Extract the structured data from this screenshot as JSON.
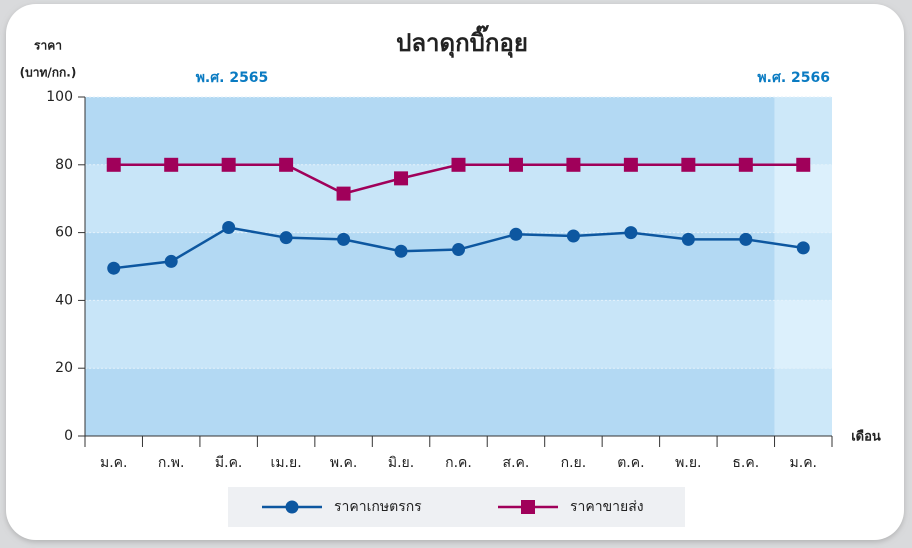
{
  "chart_data": {
    "type": "line",
    "title": "ปลาดุกบิ๊กอุย",
    "y_label": [
      "ราคา",
      "(บาท/กก.)"
    ],
    "x_label": "เดือน",
    "annotations": [
      "พ.ศ. 2565",
      "พ.ศ. 2566"
    ],
    "categories": [
      "ม.ค.",
      "ก.พ.",
      "มี.ค.",
      "เม.ย.",
      "พ.ค.",
      "มิ.ย.",
      "ก.ค.",
      "ส.ค.",
      "ก.ย.",
      "ต.ค.",
      "พ.ย.",
      "ธ.ค.",
      "ม.ค."
    ],
    "series": [
      {
        "name": "ราคาเกษตรกร",
        "color": "#0d57a0",
        "marker": "circle",
        "values": [
          49.5,
          51.5,
          61.5,
          58.5,
          58,
          54.5,
          55,
          59.5,
          59,
          60,
          58,
          58,
          55.5
        ]
      },
      {
        "name": "ราคาขายส่ง",
        "color": "#a0005a",
        "marker": "square",
        "values": [
          80,
          80,
          80,
          80,
          71.5,
          76,
          80,
          80,
          80,
          80,
          80,
          80,
          80
        ]
      }
    ],
    "ylim": [
      0,
      100
    ],
    "yticks": [
      0,
      20,
      40,
      60,
      80,
      100
    ]
  }
}
